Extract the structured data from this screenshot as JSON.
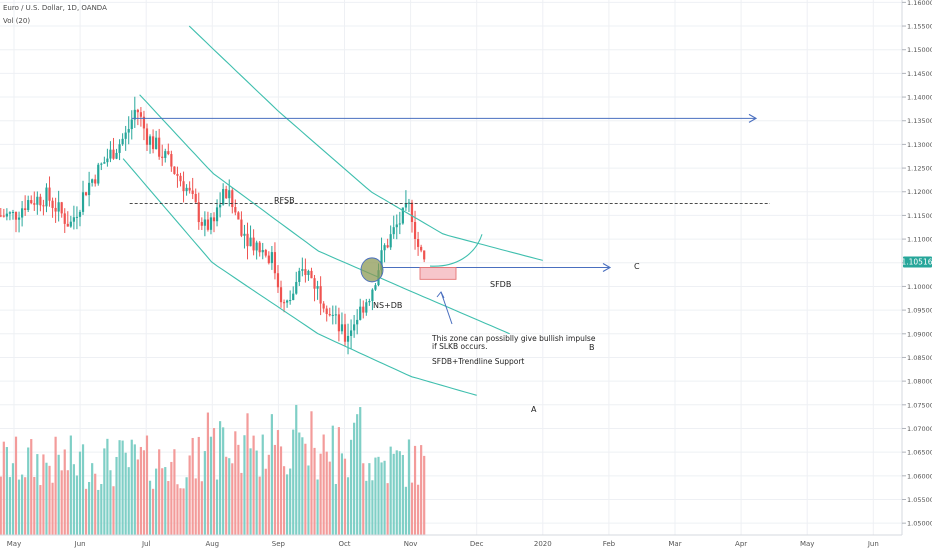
{
  "header": {
    "symbol_title": "Euro / U.S. Dollar, 1D, OANDA",
    "volume_label": "Vol (20)"
  },
  "colors": {
    "up": "#26a69a",
    "down": "#ef5350",
    "vol_up": "#7fcfc6",
    "vol_down": "#f39b9a",
    "trend": "#3fbfae",
    "arrow": "#4a6fbf",
    "price_badge": "#26a69a",
    "zone_fill": "#f7c6cb",
    "zone_stroke": "#e57373",
    "ellipse_fill": "#8c9a55",
    "grid": "#eef0f4"
  },
  "chart_data": {
    "type": "candlestick",
    "price_axis": {
      "ylim": [
        1.0475,
        1.1605
      ],
      "ticks": [
        "1.16000",
        "1.15500",
        "1.15000",
        "1.14500",
        "1.14000",
        "1.13500",
        "1.13000",
        "1.12500",
        "1.12000",
        "1.11500",
        "1.11000",
        "1.10500",
        "1.10000",
        "1.09500",
        "1.09000",
        "1.08500",
        "1.08000",
        "1.07500",
        "1.07000",
        "1.06500",
        "1.06000",
        "1.05500",
        "1.05000"
      ],
      "current_price": "1.10516",
      "current_value": 1.10516
    },
    "time_axis": {
      "labels": [
        "May",
        "Jun",
        "Jul",
        "Aug",
        "Sep",
        "Oct",
        "Nov",
        "Dec",
        "2020",
        "Feb",
        "Mar",
        "Apr",
        "May",
        "Jun"
      ],
      "months_from_may_2019": [
        0,
        1,
        2,
        3,
        4,
        5,
        6,
        7,
        8,
        9,
        10,
        11,
        12,
        13
      ]
    },
    "price_path": {
      "months": [
        0,
        0.2,
        0.5,
        0.85,
        1.1,
        1.4,
        1.7,
        1.85,
        2.0,
        2.3,
        2.6,
        2.9,
        3.2,
        3.5,
        3.9,
        4.1,
        4.4,
        4.7,
        5.0,
        5.2,
        5.4,
        5.6,
        5.8,
        6.0,
        6.1,
        6.2
      ],
      "prices": [
        1.115,
        1.118,
        1.119,
        1.113,
        1.121,
        1.127,
        1.132,
        1.138,
        1.132,
        1.127,
        1.121,
        1.112,
        1.12,
        1.111,
        1.106,
        1.095,
        1.104,
        1.097,
        1.089,
        1.094,
        1.099,
        1.108,
        1.113,
        1.117,
        1.109,
        1.105
      ]
    },
    "volume_note": "volume histogram (no values printed)",
    "annotations": {
      "rfsb": "RFSB",
      "ns_db": "NS+DB",
      "sfdb": "SFDB",
      "note_line1": "This zone can possiblly give bullish impulse",
      "note_line2": "if SLKB occurs.",
      "note_line3": "SFDB+Trendline Support",
      "label_a": "A",
      "label_b": "B",
      "label_c": "C"
    },
    "levels": {
      "resistance_arrow_price": 1.1355,
      "rfsb_dashed_price": 1.1175,
      "sfdb_arrow_price": 1.104
    },
    "curves": {
      "A": {
        "months": [
          1.65,
          3.0,
          4.6,
          6.0,
          7.0
        ],
        "prices": [
          1.127,
          1.105,
          1.09,
          1.081,
          1.077
        ]
      },
      "B": {
        "months": [
          1.9,
          3.0,
          4.6,
          6.0,
          7.5
        ],
        "prices": [
          1.1405,
          1.124,
          1.1075,
          1.099,
          1.09
        ]
      },
      "C": {
        "months": [
          2.65,
          4.0,
          5.4,
          6.5,
          8.0
        ],
        "prices": [
          1.155,
          1.137,
          1.12,
          1.111,
          1.1055
        ]
      }
    }
  }
}
